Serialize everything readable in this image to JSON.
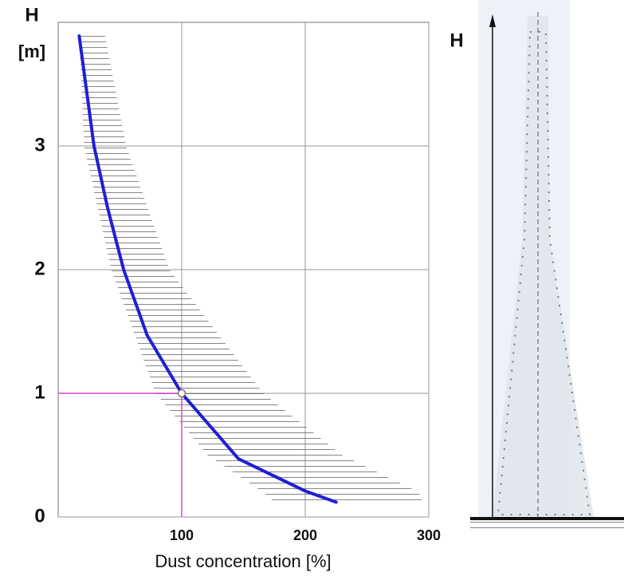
{
  "chart_data": {
    "type": "line",
    "y_label_top": "H",
    "y_label_unit": "[m]",
    "x_label": "Dust concentration [%]",
    "xlim": [
      0,
      300
    ],
    "ylim": [
      0,
      4
    ],
    "xticks": [
      100,
      200,
      300
    ],
    "yticks": [
      0,
      1,
      2,
      3
    ],
    "grid": true,
    "series": [
      {
        "color": "#1f1fd6",
        "x": [
          17,
          29,
          40,
          53,
          72,
          100,
          146,
          200,
          225
        ],
        "values": [
          3.89,
          3.0,
          2.5,
          2.0,
          1.47,
          1.0,
          0.47,
          0.21,
          0.12
        ]
      }
    ],
    "band": {
      "h": [
        3.89,
        3.0,
        2.0,
        1.0,
        0.5,
        0.2,
        0.12
      ],
      "low": [
        17,
        21,
        43,
        79,
        121,
        166,
        175
      ],
      "high": [
        38,
        55,
        90,
        166,
        230,
        292,
        295
      ]
    },
    "marker": {
      "x": 100,
      "y": 1,
      "color": "#e040e0"
    },
    "diagram_label": "H"
  }
}
